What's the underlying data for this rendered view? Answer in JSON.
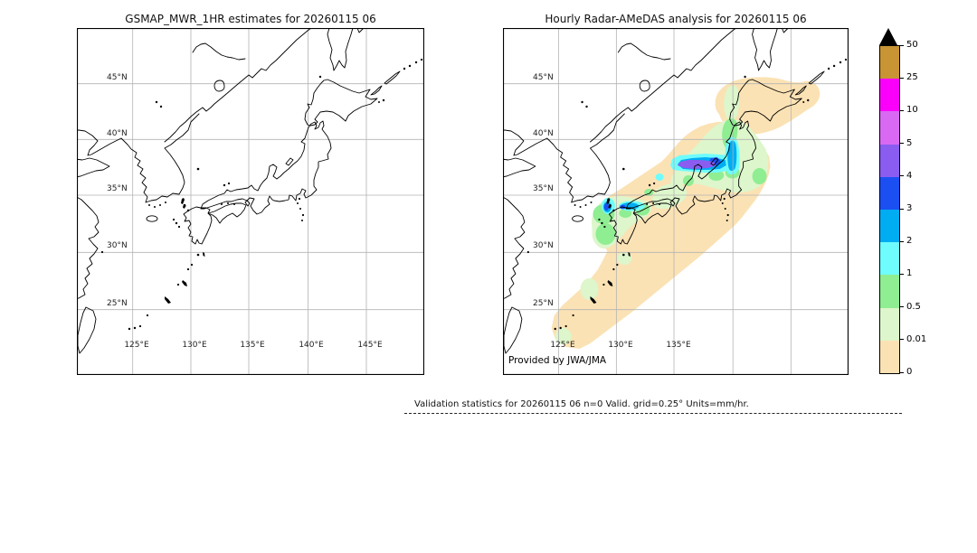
{
  "figure": {
    "left_map": {
      "title": "GSMAP_MWR_1HR estimates for 20260115 06",
      "lat_labels": [
        "45°N",
        "40°N",
        "35°N",
        "30°N",
        "25°N"
      ],
      "lon_labels": [
        "125°E",
        "130°E",
        "135°E",
        "140°E",
        "145°E"
      ]
    },
    "right_map": {
      "title": "Hourly Radar-AMeDAS analysis for 20260115 06",
      "lat_labels": [
        "45°N",
        "40°N",
        "35°N",
        "30°N",
        "25°N"
      ],
      "lon_labels": [
        "125°E",
        "130°E",
        "135°E"
      ],
      "credit": "Provided by JWA/JMA"
    },
    "colorbar": {
      "units": "mm/hr",
      "tick_labels": [
        "50",
        "25",
        "10",
        "5",
        "4",
        "3",
        "2",
        "1",
        "0.5",
        "0.01",
        "0"
      ],
      "overflow_color": "#000000",
      "segments_bottom_up": [
        {
          "range": "0-0.01",
          "color": "#fbe2b4"
        },
        {
          "range": "0.01-0.5",
          "color": "#ddf6cb"
        },
        {
          "range": "0.5-1",
          "color": "#8fed92"
        },
        {
          "range": "1-2",
          "color": "#6ffcfc"
        },
        {
          "range": "2-3",
          "color": "#00acf2"
        },
        {
          "range": "3-4",
          "color": "#1b4ff2"
        },
        {
          "range": "4-5",
          "color": "#8a5cf0"
        },
        {
          "range": "5-10",
          "color": "#d969f2"
        },
        {
          "range": "10-25",
          "color": "#fa00fa"
        },
        {
          "range": "25-50",
          "color": "#c89434"
        }
      ]
    },
    "footer": {
      "stats_text": "Validation statistics for 20260115 06  n=0 Valid. grid=0.25° Units=mm/hr."
    }
  },
  "palette": {
    "c0": "#fbe2b4",
    "c1": "#ddf6cb",
    "c2": "#8fed92",
    "c3": "#6ffcfc",
    "c4": "#00acf2",
    "c5": "#1b4ff2",
    "c6": "#8a5cf0",
    "grid": "#b3b3b3",
    "coast": "#000000"
  },
  "chart_data": [
    {
      "type": "heatmap",
      "subtype": "geographic precipitation map",
      "title": "GSMAP_MWR_1HR estimates for 20260115 06",
      "lon_range": [
        120,
        150
      ],
      "lat_range": [
        19,
        50.5
      ],
      "gridline_lons": [
        125,
        130,
        135,
        140,
        145
      ],
      "gridline_lats": [
        25,
        30,
        35,
        40,
        45
      ],
      "grid": true,
      "units": "mm/hr",
      "precipitation": "none plotted (empty map, coastlines only)"
    },
    {
      "type": "heatmap",
      "subtype": "geographic precipitation map",
      "title": "Hourly Radar-AMeDAS analysis for 20260115 06",
      "lon_range": [
        120,
        150
      ],
      "lat_range": [
        19,
        50.5
      ],
      "gridline_lons": [
        125,
        130,
        135,
        140,
        145
      ],
      "gridline_lats": [
        25,
        30,
        35,
        40,
        45
      ],
      "grid": true,
      "units": "mm/hr",
      "credit": "Provided by JWA/JMA",
      "precipitation": "wide 0-0.01 mm/hr band along entire Japanese archipelago from Okinawa (25N 126E) to Hokkaido (44N 144E); 0.01-1 mm/hr patches over western Kyushu, northwest Shikoku, Chugoku and Tohoku; 1-3 mm/hr cells near Tsushima/north Kyushu (34N 129-131E); strongest band 2-5 mm/hr (violet core 4-5, blue 3-4) over Sea of Japan coast of northern Honshu near 37.5-38.5N 137-140E with cyan strip 1-3 mm/hr along 140E up to 40N"
    },
    {
      "type": "colorbar",
      "orientation": "vertical",
      "units": "mm/hr",
      "levels": [
        0,
        0.01,
        0.5,
        1,
        2,
        3,
        4,
        5,
        10,
        25,
        50
      ],
      "colors_bottom_up": [
        "#fbe2b4",
        "#ddf6cb",
        "#8fed92",
        "#6ffcfc",
        "#00acf2",
        "#1b4ff2",
        "#8a5cf0",
        "#d969f2",
        "#fa00fa",
        "#c89434"
      ],
      "overflow": "black triangle above 50"
    }
  ]
}
